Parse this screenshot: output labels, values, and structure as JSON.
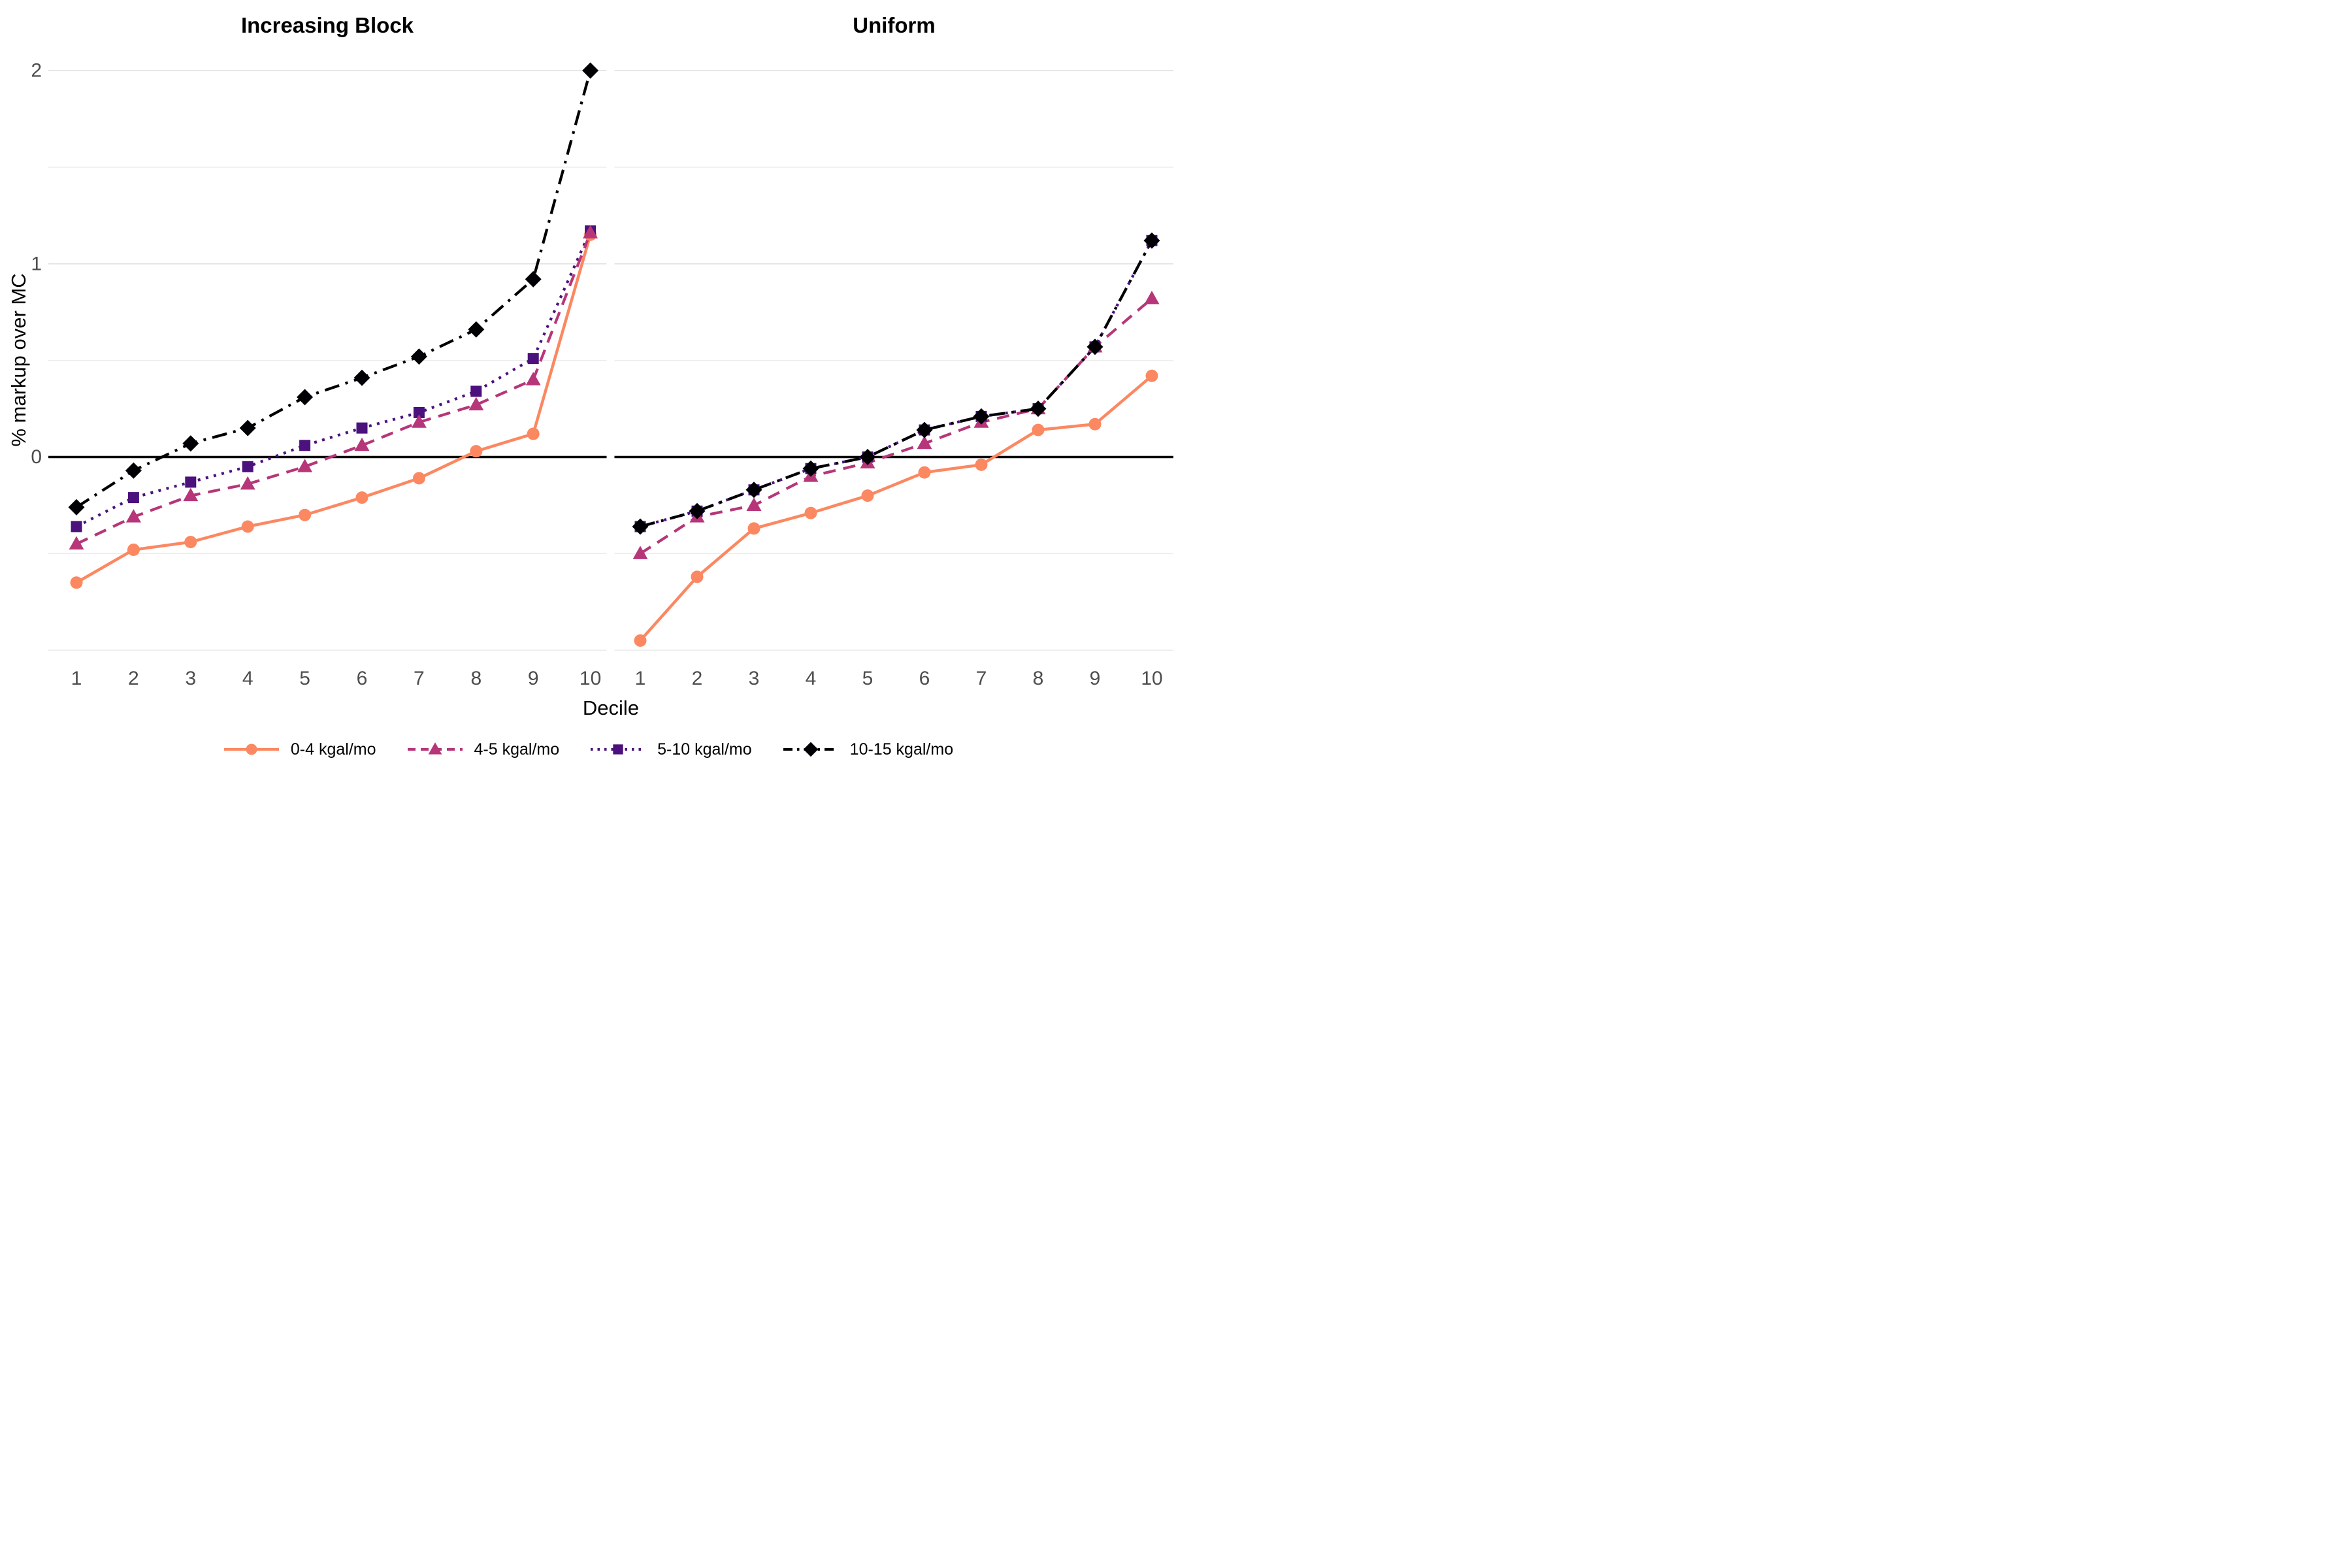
{
  "figure": {
    "y_axis": {
      "label": "% markup over MC",
      "tick_labels": [
        "0",
        "1",
        "2"
      ],
      "tick_values": [
        0,
        1,
        2
      ]
    },
    "x_axis": {
      "label": "Decile"
    }
  },
  "chart_data": {
    "type": "line",
    "x": [
      "1",
      "2",
      "3",
      "4",
      "5",
      "6",
      "7",
      "8",
      "9",
      "10"
    ],
    "ylabel": "% markup over MC",
    "xlabel": "Decile",
    "ylim": [
      -1.05,
      2.1
    ],
    "grid": "horizontal-only",
    "gridlines_major": [
      0,
      1,
      2
    ],
    "gridlines_minor": [
      -1,
      -0.5,
      0.5,
      1.5
    ],
    "zero_line": 0,
    "legend_position": "bottom",
    "series_meta": [
      {
        "name": "0-4 kgal/mo",
        "color": "#FB8861",
        "linetype": "solid",
        "marker": "circle"
      },
      {
        "name": "4-5 kgal/mo",
        "color": "#B63679",
        "linetype": "dashed",
        "marker": "triangle"
      },
      {
        "name": "5-10 kgal/mo",
        "color": "#4B117C",
        "linetype": "dotted",
        "marker": "square"
      },
      {
        "name": "10-15 kgal/mo",
        "color": "#000004",
        "linetype": "dashdot",
        "marker": "diamond"
      }
    ],
    "facets": [
      {
        "title": "Increasing Block",
        "series": [
          {
            "name": "0-4 kgal/mo",
            "values": [
              -0.65,
              -0.48,
              -0.44,
              -0.36,
              -0.3,
              -0.21,
              -0.11,
              0.03,
              0.12,
              1.15
            ]
          },
          {
            "name": "4-5 kgal/mo",
            "values": [
              -0.45,
              -0.31,
              -0.2,
              -0.14,
              -0.05,
              0.06,
              0.18,
              0.27,
              0.4,
              1.16
            ]
          },
          {
            "name": "5-10 kgal/mo",
            "values": [
              -0.36,
              -0.21,
              -0.13,
              -0.05,
              0.06,
              0.15,
              0.23,
              0.34,
              0.51,
              1.17
            ]
          },
          {
            "name": "10-15 kgal/mo",
            "values": [
              -0.26,
              -0.07,
              0.07,
              0.15,
              0.31,
              0.41,
              0.52,
              0.66,
              0.92,
              2.0
            ]
          }
        ]
      },
      {
        "title": "Uniform",
        "series": [
          {
            "name": "0-4 kgal/mo",
            "values": [
              -0.95,
              -0.62,
              -0.37,
              -0.29,
              -0.2,
              -0.08,
              -0.04,
              0.14,
              0.17,
              0.42
            ]
          },
          {
            "name": "4-5 kgal/mo",
            "values": [
              -0.5,
              -0.31,
              -0.25,
              -0.1,
              -0.03,
              0.07,
              0.18,
              0.25,
              0.57,
              0.82
            ]
          },
          {
            "name": "5-10 kgal/mo",
            "values": [
              -0.36,
              -0.28,
              -0.17,
              -0.06,
              0.0,
              0.14,
              0.21,
              0.25,
              0.57,
              1.12
            ]
          },
          {
            "name": "10-15 kgal/mo",
            "values": [
              -0.36,
              -0.28,
              -0.17,
              -0.06,
              0.0,
              0.14,
              0.21,
              0.25,
              0.57,
              1.12
            ]
          }
        ]
      }
    ]
  },
  "colors": {
    "grid_major": "#E2E2E2",
    "grid_minor": "#EBEBEB",
    "zero_line": "#000000",
    "tick_text": "#4D4D4D"
  }
}
